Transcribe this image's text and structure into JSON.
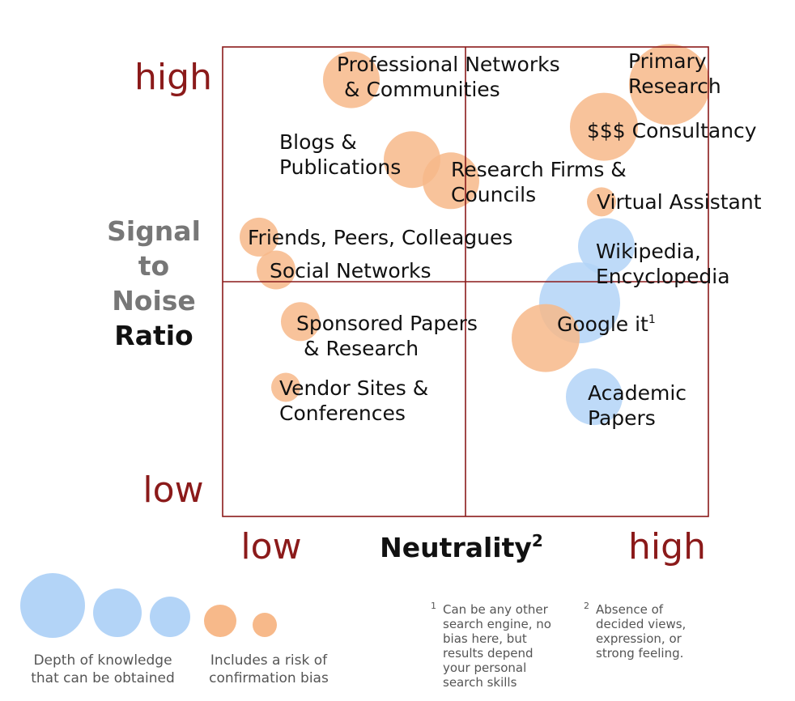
{
  "chart_data": {
    "type": "scatter",
    "title": "",
    "xlabel": "Neutrality",
    "xlabel_sup": "2",
    "ylabel_lines": [
      "Signal",
      "to",
      "Noise",
      "Ratio"
    ],
    "x_ticks": {
      "low": "low",
      "high": "high"
    },
    "y_ticks": {
      "low": "low",
      "high": "high"
    },
    "xlim": [
      0,
      2
    ],
    "ylim": [
      0,
      2
    ],
    "quadrant_split": {
      "x": 1,
      "y": 1
    },
    "grid": "quadrant lines",
    "colors": {
      "frame": "#8b1a1a",
      "tick_text": "#8b1a1a",
      "knowledge": "#b3d4f7",
      "bias": "#f7b98a",
      "ylabel_gray": "#777777",
      "ylabel_black": "#111111"
    },
    "points": [
      {
        "lines": [
          "Primary",
          "Research"
        ],
        "x": 1.84,
        "y": 1.84,
        "size": "xl",
        "kind": "bias"
      },
      {
        "lines": [
          "Professional Networks",
          "& Communities"
        ],
        "x": 0.53,
        "y": 1.86,
        "size": "m",
        "kind": "bias"
      },
      {
        "lines": [
          "$$$ Consultancy"
        ],
        "x": 1.57,
        "y": 1.66,
        "size": "l",
        "kind": "bias"
      },
      {
        "lines": [
          "Blogs &",
          "Publications"
        ],
        "x": 0.78,
        "y": 1.52,
        "size": "m",
        "kind": "bias"
      },
      {
        "lines": [
          "Research Firms &",
          "Councils"
        ],
        "x": 0.94,
        "y": 1.43,
        "size": "m",
        "kind": "bias"
      },
      {
        "lines": [
          "Virtual Assistant"
        ],
        "x": 1.56,
        "y": 1.34,
        "size": "xs",
        "kind": "bias"
      },
      {
        "lines": [
          "Friends, Peers, Colleagues"
        ],
        "x": 0.15,
        "y": 1.19,
        "size": "s",
        "kind": "bias"
      },
      {
        "lines": [
          "Social Networks"
        ],
        "x": 0.22,
        "y": 1.05,
        "size": "s",
        "kind": "bias"
      },
      {
        "lines": [
          "Wikipedia,",
          "Encyclopedia"
        ],
        "x": 1.58,
        "y": 1.15,
        "size": "m",
        "kind": "knowledge"
      },
      {
        "lines": [
          "Google it"
        ],
        "sup": "1",
        "x": 1.47,
        "y": 0.91,
        "size": "xl",
        "kind": "knowledge"
      },
      {
        "lines": [],
        "x": 1.33,
        "y": 0.76,
        "size": "l",
        "kind": "bias"
      },
      {
        "lines": [
          "Sponsored Papers",
          "& Research"
        ],
        "x": 0.32,
        "y": 0.83,
        "size": "s",
        "kind": "bias"
      },
      {
        "lines": [
          "Vendor Sites &",
          "Conferences"
        ],
        "x": 0.26,
        "y": 0.55,
        "size": "xs",
        "kind": "bias"
      },
      {
        "lines": [
          "Academic",
          "Papers"
        ],
        "x": 1.53,
        "y": 0.51,
        "size": "m",
        "kind": "knowledge"
      }
    ]
  },
  "legend": {
    "knowledge_text": [
      "Depth of knowledge",
      "that can be obtained"
    ],
    "bias_text": [
      "Includes a risk of",
      "confirmation bias"
    ]
  },
  "footnotes": [
    {
      "mark": "1",
      "lines": [
        "Can be any other",
        "search engine, no",
        "bias here, but",
        "results depend",
        "your personal",
        "search skills"
      ]
    },
    {
      "mark": "2",
      "lines": [
        "Absence of",
        "decided views,",
        "expression, or",
        "strong feeling."
      ]
    }
  ]
}
